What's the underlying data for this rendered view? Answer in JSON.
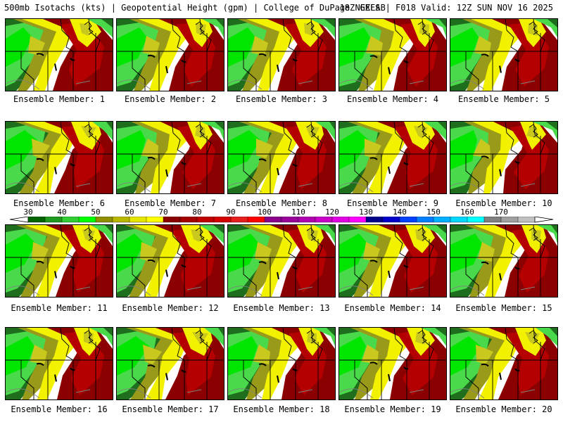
{
  "header": {
    "left": "500mb Isotachs (kts) | Geopotential Height (gpm) | College of DuPage NEXLAB",
    "right": "18Z GEFS | F018 Valid: 12Z SUN NOV 16 2025"
  },
  "member_prefix": "Ensemble Member: ",
  "members": [
    "1",
    "2",
    "3",
    "4",
    "5",
    "6",
    "7",
    "8",
    "9",
    "10",
    "11",
    "12",
    "13",
    "14",
    "15",
    "16",
    "17",
    "18",
    "19",
    "20"
  ],
  "colorbar": {
    "ticks": [
      "30",
      "40",
      "50",
      "60",
      "70",
      "80",
      "90",
      "100",
      "110",
      "120",
      "130",
      "140",
      "150",
      "160",
      "170"
    ],
    "colors": [
      "#006400",
      "#1e9b1e",
      "#32cd32",
      "#00ff00",
      "#8f8f00",
      "#b8b800",
      "#e5e500",
      "#ffff00",
      "#8b0000",
      "#a50000",
      "#c00000",
      "#d50000",
      "#e61e1e",
      "#ff0000",
      "#8b008b",
      "#9a009a",
      "#b000b0",
      "#c800c8",
      "#e100e1",
      "#ff00ff",
      "#00008b",
      "#0000cd",
      "#0040ff",
      "#0080ff",
      "#00b0ff",
      "#00d8ff",
      "#00ffff",
      "#808080",
      "#a0a0a0",
      "#c0c0c0"
    ]
  },
  "map_colors": {
    "c30": "#1e6e1e",
    "c40": "#3cb43c",
    "c50": "#4ad94a",
    "c55": "#00e600",
    "c60": "#9a9a1a",
    "c65": "#c8c81e",
    "c70": "#f2f200",
    "c80": "#8b0000",
    "c90": "#b40000",
    "border": "#000000",
    "roads": "#808080"
  }
}
